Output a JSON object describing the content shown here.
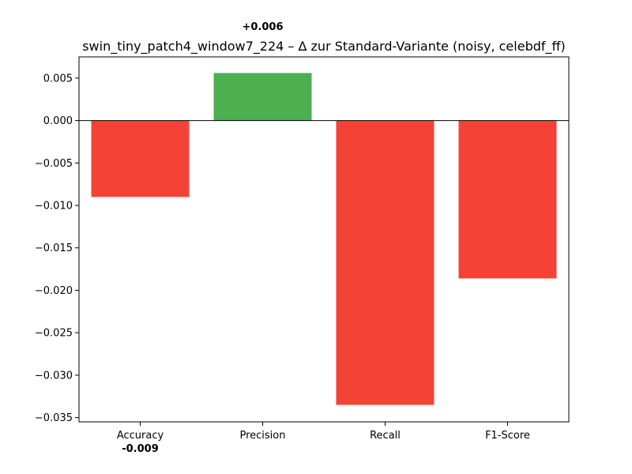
{
  "chart_data": {
    "type": "bar",
    "title": "swin_tiny_patch4_window7_224 – Δ zur Standard-Variante (noisy, celebdf_ff)",
    "xlabel": "",
    "ylabel": "",
    "categories": [
      "Accuracy",
      "Precision",
      "Recall",
      "F1-Score"
    ],
    "values": [
      -0.009,
      0.0056,
      -0.0335,
      -0.0186
    ],
    "value_labels": [
      "-0.009",
      "+0.006",
      "",
      ""
    ],
    "colors": [
      "#f44336",
      "#4caf50",
      "#f44336",
      "#f44336"
    ],
    "ylim": [
      -0.0355,
      0.0075
    ],
    "yticks": [
      0.005,
      0.0,
      -0.005,
      -0.01,
      -0.015,
      -0.02,
      -0.025,
      -0.03,
      -0.035
    ],
    "ytick_labels": [
      "0.005",
      "0.000",
      "−0.005",
      "−0.010",
      "−0.015",
      "−0.020",
      "−0.025",
      "−0.030",
      "−0.035"
    ],
    "grid": false,
    "zero_line": true
  }
}
